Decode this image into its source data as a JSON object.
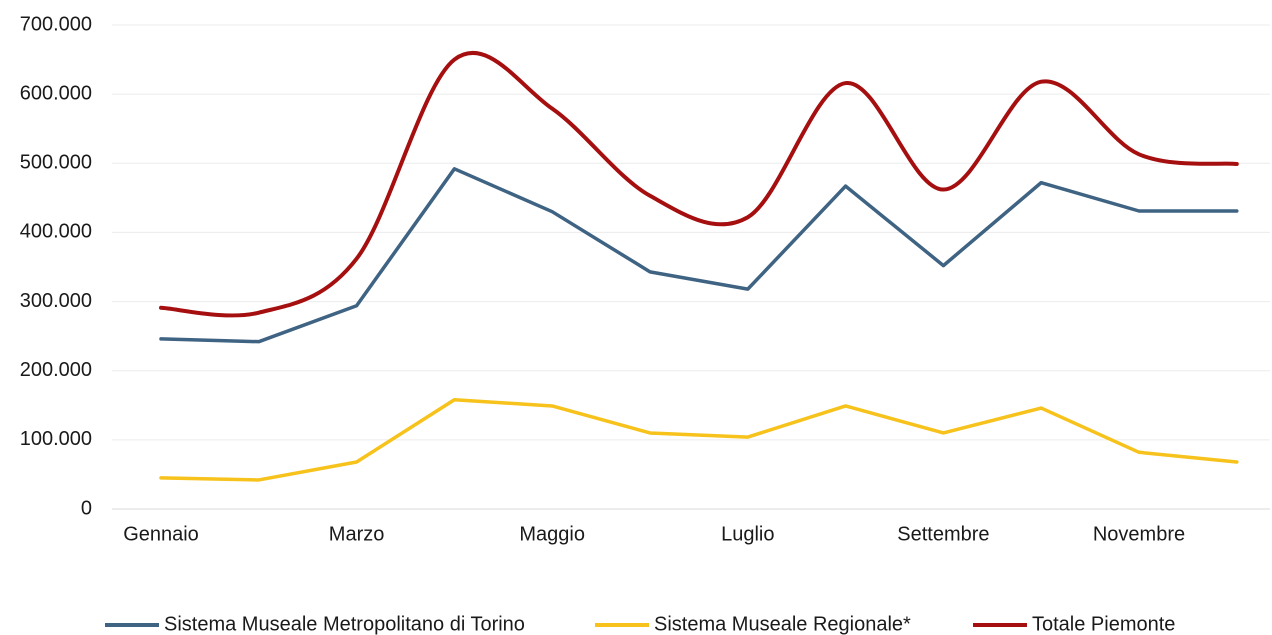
{
  "chart_data": {
    "type": "line",
    "categories": [
      "Gennaio",
      null,
      "Marzo",
      null,
      "Maggio",
      null,
      "Luglio",
      null,
      "Settembre",
      null,
      "Novembre",
      null
    ],
    "series": [
      {
        "name": "Sistema Museale Metropolitano di Torino",
        "color": "#3f6383",
        "smooth": false,
        "values": [
          246000,
          242000,
          294000,
          492000,
          430000,
          343000,
          318000,
          467000,
          352000,
          472000,
          431000,
          431000
        ]
      },
      {
        "name": "Sistema Museale Regionale*",
        "color": "#f6c21b",
        "smooth": false,
        "values": [
          45000,
          42000,
          68000,
          158000,
          149000,
          110000,
          104000,
          149000,
          110000,
          146000,
          82000,
          68000
        ]
      },
      {
        "name": "Totale Piemonte",
        "color": "#a50f0f",
        "smooth": true,
        "values": [
          291000,
          284000,
          362000,
          650000,
          579000,
          453000,
          422000,
          616000,
          462000,
          618000,
          513000,
          499000
        ]
      }
    ],
    "ylim": [
      0,
      700000
    ],
    "yticks": [
      0,
      {
        "value": 100000,
        "label": "100.000"
      },
      {
        "value": 200000,
        "label": "200.000"
      },
      {
        "value": 300000,
        "label": "300.000"
      },
      {
        "value": 400000,
        "label": "400.000"
      },
      {
        "value": 500000,
        "label": "500.000"
      },
      {
        "value": 600000,
        "label": "600.000"
      },
      {
        "value": 700000,
        "label": "700.000"
      }
    ],
    "grid": true,
    "legend": "bottom"
  }
}
